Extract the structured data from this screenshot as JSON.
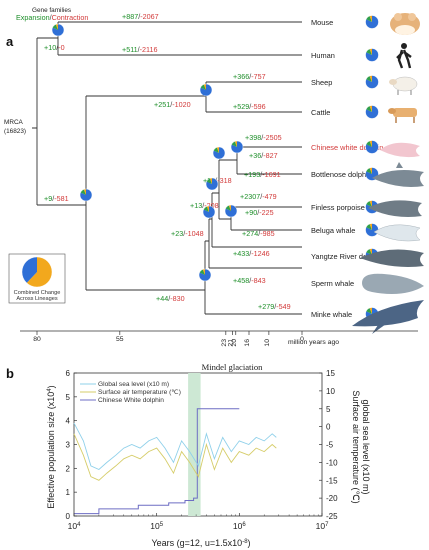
{
  "panel_a": {
    "letter": "a",
    "header_line1": "Gene families",
    "header_expansion": "Expansion",
    "header_separator": "/",
    "header_contraction": "Contraction",
    "root_label": "MRCA",
    "root_count": "(16823)",
    "inset_label_line1": "Combined Change",
    "inset_label_line2": "Across Lineages",
    "axis_title": "million years ago",
    "axis_ticks": [
      "80",
      "55",
      "23",
      "21",
      "20",
      "16",
      "10",
      "0"
    ],
    "species": [
      {
        "name": "Mouse",
        "highlight": false
      },
      {
        "name": "Human",
        "highlight": false
      },
      {
        "name": "Sheep",
        "highlight": false
      },
      {
        "name": "Cattle",
        "highlight": false
      },
      {
        "name": "Chinese white dolphin",
        "highlight": true
      },
      {
        "name": "Bottlenose dolphin",
        "highlight": false
      },
      {
        "name": "Finless porpoise",
        "highlight": false
      },
      {
        "name": "Beluga whale",
        "highlight": false
      },
      {
        "name": "Yangtze River dolphin",
        "highlight": false
      },
      {
        "name": "Sperm whale",
        "highlight": false
      },
      {
        "name": "Minke whale",
        "highlight": false
      }
    ],
    "branch_changes": [
      {
        "branch": "Mouse",
        "expansion": "+887",
        "contraction": "-2067"
      },
      {
        "branch": "Human",
        "expansion": "+511",
        "contraction": "-2116"
      },
      {
        "branch": "Euarchontoglires",
        "expansion": "+10",
        "contraction": "-0"
      },
      {
        "branch": "Sheep",
        "expansion": "+366",
        "contraction": "-757"
      },
      {
        "branch": "Cattle",
        "expansion": "+529",
        "contraction": "-596"
      },
      {
        "branch": "Ruminantia",
        "expansion": "+251",
        "contraction": "-1020"
      },
      {
        "branch": "Chinese white dolphin",
        "expansion": "+398",
        "contraction": "-2505"
      },
      {
        "branch": "Dolphin ancestor",
        "expansion": "+36",
        "contraction": "-827"
      },
      {
        "branch": "Bottlenose dolphin",
        "expansion": "+193",
        "contraction": "-1691"
      },
      {
        "branch": "Delphinoidea",
        "expansion": "+26",
        "contraction": "-318"
      },
      {
        "branch": "Finless porpoise",
        "expansion": "+2307",
        "contraction": "-479"
      },
      {
        "branch": "Monodontidae-Phocoenidae",
        "expansion": "+90",
        "contraction": "-225"
      },
      {
        "branch": "Beluga whale",
        "expansion": "+274",
        "contraction": "-985"
      },
      {
        "branch": "Delphinida",
        "expansion": "+13",
        "contraction": "-208"
      },
      {
        "branch": "Yangtze River dolphin",
        "expansion": "+433",
        "contraction": "-1246"
      },
      {
        "branch": "Odontoceti",
        "expansion": "+23",
        "contraction": "-1048"
      },
      {
        "branch": "Sperm whale",
        "expansion": "+458",
        "contraction": "-843"
      },
      {
        "branch": "Cetacea",
        "expansion": "+44",
        "contraction": "-830"
      },
      {
        "branch": "Minke whale",
        "expansion": "+279",
        "contraction": "-549"
      },
      {
        "branch": "Laurasiatheria",
        "expansion": "+9",
        "contraction": "-581"
      }
    ],
    "pie_colors": {
      "contraction": "#f2a81d",
      "expansion": "#2f6fd6",
      "other": "#2fa04a"
    }
  },
  "panel_b": {
    "letter": "b",
    "glaciation_label": "Mindel glaciation",
    "legend": [
      {
        "label": "Global sea level (x10 m)",
        "color": "#8fd0ea"
      },
      {
        "label": "Surface air temperature (℃)",
        "color": "#d6cd6a"
      },
      {
        "label": "Chinese White dolphin",
        "color": "#6d6dc4"
      }
    ],
    "y_left_title": "Effective population size (x10",
    "y_left_exp": "4",
    "y_left_close": ")",
    "y_right_title_1": "Surface air temperature (℃)",
    "y_right_title_2": "global sea level (x10 m)",
    "x_title": "Years (g=12, u=1.5x10",
    "x_title_exp": "-8",
    "x_title_close": ")",
    "y_left_ticks": [
      "0",
      "1",
      "2",
      "3",
      "4",
      "5",
      "6"
    ],
    "y_right_ticks": [
      "15",
      "10",
      "5",
      "0",
      "-5",
      "-10",
      "-15",
      "-20",
      "-25"
    ],
    "x_ticks": [
      {
        "base": "10",
        "exp": "4"
      },
      {
        "base": "10",
        "exp": "5"
      },
      {
        "base": "10",
        "exp": "6"
      },
      {
        "base": "10",
        "exp": "7"
      }
    ]
  },
  "chart_data": {
    "type": "line",
    "xscale": "log",
    "xlim": [
      10000,
      10000000
    ],
    "ylim": [
      0,
      6
    ],
    "y2lim": [
      -25,
      15
    ],
    "shaded_region": {
      "label": "Mindel glaciation",
      "x": [
        240000,
        340000
      ]
    },
    "series": [
      {
        "name": "Chinese White dolphin",
        "axis": "left",
        "x": [
          10000,
          20000,
          20000,
          60000,
          60000,
          140000,
          140000,
          220000,
          220000,
          280000,
          280000,
          310000,
          310000,
          700000,
          700000,
          1000000
        ],
        "y": [
          0.1,
          0.1,
          0.3,
          0.3,
          0.45,
          0.45,
          0.55,
          0.55,
          0.65,
          0.65,
          0.75,
          0.75,
          4.5,
          4.5,
          4.5,
          4.5
        ]
      },
      {
        "name": "Global sea level (x10 m)",
        "axis": "right",
        "x": [
          10000,
          13000,
          16000,
          20000,
          25000,
          32000,
          40000,
          50000,
          63000,
          80000,
          100000,
          126000,
          160000,
          200000,
          250000,
          320000,
          400000,
          500000,
          630000,
          800000,
          1000000,
          1300000,
          1600000,
          2000000,
          2500000,
          2800000
        ],
        "y": [
          1,
          -4,
          -11,
          -12,
          -10,
          -8,
          -6,
          -5,
          -6,
          -4,
          -3,
          -6,
          -10,
          -4,
          -7,
          -11,
          -2,
          -9,
          -3,
          -7,
          -4,
          -5,
          -3,
          -4,
          -2,
          -3
        ]
      },
      {
        "name": "Surface air temperature (℃)",
        "axis": "right",
        "x": [
          10000,
          13000,
          16000,
          20000,
          25000,
          32000,
          40000,
          50000,
          63000,
          80000,
          100000,
          126000,
          160000,
          200000,
          250000,
          320000,
          400000,
          500000,
          630000,
          800000,
          1000000,
          1300000,
          1600000,
          2000000,
          2500000,
          2800000
        ],
        "y": [
          -2,
          -8,
          -14,
          -15,
          -13,
          -11,
          -9,
          -8,
          -9,
          -7,
          -6,
          -9,
          -13,
          -7,
          -10,
          -14,
          -5,
          -12,
          -6,
          -10,
          -7,
          -8,
          -6,
          -7,
          -5,
          -6
        ]
      }
    ]
  }
}
